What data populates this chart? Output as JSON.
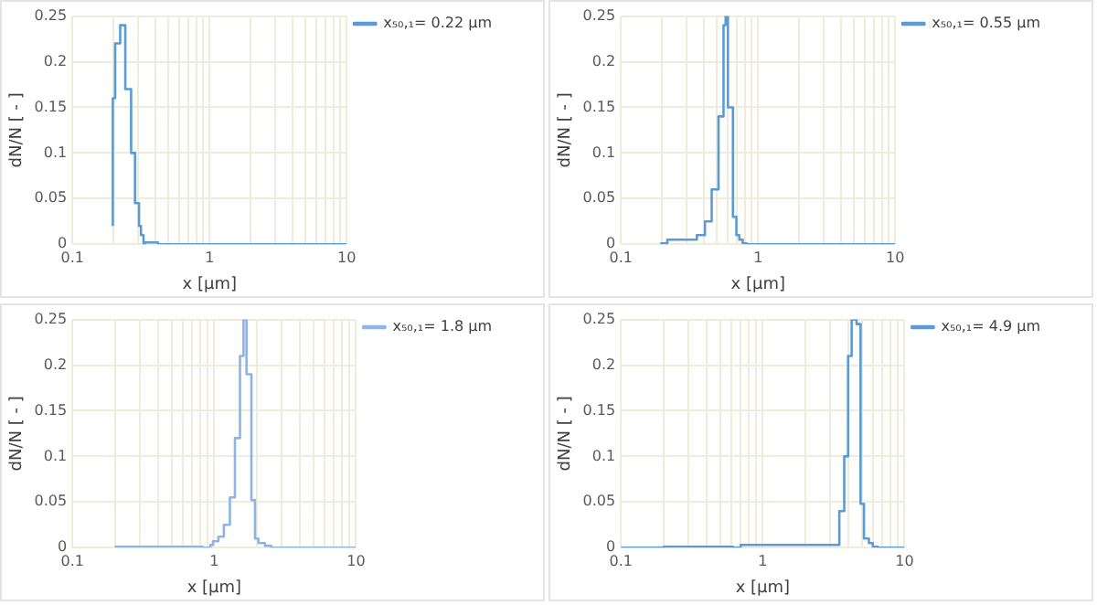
{
  "chart_data": [
    {
      "type": "step",
      "xlabel": "x [µm]",
      "ylabel": "dN/N [ - ]",
      "log": "x",
      "grid": true,
      "legend": "right",
      "marker": "none",
      "xlim": [
        0.1,
        10
      ],
      "xticks": [
        0.1,
        {
          "value": 0.2,
          "label": null
        },
        {
          "value": 0.3,
          "label": null
        },
        {
          "value": 0.4,
          "label": null
        },
        {
          "value": 0.5,
          "label": null
        },
        {
          "value": 0.6,
          "label": null
        },
        {
          "value": 0.7,
          "label": null
        },
        {
          "value": 0.8,
          "label": null
        },
        {
          "value": 0.9,
          "label": null
        },
        1,
        {
          "value": 2,
          "label": null
        },
        {
          "value": 3,
          "label": null
        },
        {
          "value": 4,
          "label": null
        },
        {
          "value": 5,
          "label": null
        },
        {
          "value": 6,
          "label": null
        },
        {
          "value": 7,
          "label": null
        },
        {
          "value": 8,
          "label": null
        },
        {
          "value": 9,
          "label": null
        },
        10
      ],
      "ylim": [
        0,
        0.25
      ],
      "yticks": [
        0,
        0.05,
        0.1,
        0.15,
        0.2,
        0.25
      ],
      "series": [
        {
          "name": "x₅₀,₁= 0.22 µm",
          "color": "#5b9bd5",
          "x": [
            0.197,
            0.205,
            0.223,
            0.243,
            0.268,
            0.286,
            0.306,
            0.316,
            0.33,
            0.338,
            0.42,
            0.51,
            10
          ],
          "values": [
            0.02,
            0.16,
            0.22,
            0.24,
            0.17,
            0.1,
            0.045,
            0.02,
            0.01,
            0,
            0.002,
            0,
            0
          ]
        }
      ]
    },
    {
      "type": "step",
      "xlabel": "x [µm]",
      "ylabel": "dN/N [ - ]",
      "log": "x",
      "grid": true,
      "legend": "right",
      "marker": "none",
      "xlim": [
        0.1,
        10
      ],
      "xticks": [
        0.1,
        {
          "value": 0.2,
          "label": null
        },
        {
          "value": 0.3,
          "label": null
        },
        {
          "value": 0.4,
          "label": null
        },
        {
          "value": 0.5,
          "label": null
        },
        {
          "value": 0.6,
          "label": null
        },
        {
          "value": 0.7,
          "label": null
        },
        {
          "value": 0.8,
          "label": null
        },
        {
          "value": 0.9,
          "label": null
        },
        1,
        {
          "value": 2,
          "label": null
        },
        {
          "value": 3,
          "label": null
        },
        {
          "value": 4,
          "label": null
        },
        {
          "value": 5,
          "label": null
        },
        {
          "value": 6,
          "label": null
        },
        {
          "value": 7,
          "label": null
        },
        {
          "value": 8,
          "label": null
        },
        {
          "value": 9,
          "label": null
        },
        10
      ],
      "ylim": [
        0,
        0.25
      ],
      "yticks": [
        0,
        0.05,
        0.1,
        0.15,
        0.2,
        0.25
      ],
      "series": [
        {
          "name": "x₅₀,₁= 0.55 µm",
          "color": "#5b9bd5",
          "x": [
            0.197,
            0.218,
            0.358,
            0.41,
            0.459,
            0.515,
            0.56,
            0.58,
            0.603,
            0.656,
            0.695,
            0.73,
            0.773,
            0.826,
            1.01,
            10
          ],
          "values": [
            0,
            0.001,
            0.005,
            0.01,
            0.025,
            0.06,
            0.14,
            0.24,
            0.25,
            0.15,
            0.03,
            0.01,
            0.005,
            0.001,
            0,
            0
          ]
        }
      ]
    },
    {
      "type": "step",
      "xlabel": "x [µm]",
      "ylabel": "dN/N [ - ]",
      "log": "x",
      "grid": true,
      "legend": "right",
      "marker": "none",
      "xlim": [
        0.1,
        10
      ],
      "xticks": [
        0.1,
        {
          "value": 0.2,
          "label": null
        },
        {
          "value": 0.3,
          "label": null
        },
        {
          "value": 0.4,
          "label": null
        },
        {
          "value": 0.5,
          "label": null
        },
        {
          "value": 0.6,
          "label": null
        },
        {
          "value": 0.7,
          "label": null
        },
        {
          "value": 0.8,
          "label": null
        },
        {
          "value": 0.9,
          "label": null
        },
        1,
        {
          "value": 2,
          "label": null
        },
        {
          "value": 3,
          "label": null
        },
        {
          "value": 4,
          "label": null
        },
        {
          "value": 5,
          "label": null
        },
        {
          "value": 6,
          "label": null
        },
        {
          "value": 7,
          "label": null
        },
        {
          "value": 8,
          "label": null
        },
        {
          "value": 9,
          "label": null
        },
        10
      ],
      "ylim": [
        0,
        0.25
      ],
      "yticks": [
        0,
        0.05,
        0.1,
        0.15,
        0.2,
        0.25
      ],
      "series": [
        {
          "name": "x₅₀,₁= 1.8 µm",
          "color": "#8eb4e3",
          "x": [
            0.202,
            0.83,
            0.94,
            0.98,
            1.07,
            1.17,
            1.29,
            1.4,
            1.52,
            1.61,
            1.69,
            1.83,
            1.94,
            2.05,
            2.28,
            2.53,
            3.02,
            10
          ],
          "values": [
            0,
            0.001,
            0,
            0.003,
            0.007,
            0.012,
            0.025,
            0.055,
            0.12,
            0.21,
            0.25,
            0.19,
            0.052,
            0.01,
            0.005,
            0.002,
            0,
            0
          ]
        }
      ]
    },
    {
      "type": "step",
      "xlabel": "x [µm]",
      "ylabel": "dN/N [ - ]",
      "log": "x",
      "grid": true,
      "legend": "right",
      "marker": "none",
      "xlim": [
        0.1,
        10
      ],
      "xticks": [
        0.1,
        {
          "value": 0.2,
          "label": null
        },
        {
          "value": 0.3,
          "label": null
        },
        {
          "value": 0.4,
          "label": null
        },
        {
          "value": 0.5,
          "label": null
        },
        {
          "value": 0.6,
          "label": null
        },
        {
          "value": 0.7,
          "label": null
        },
        {
          "value": 0.8,
          "label": null
        },
        {
          "value": 0.9,
          "label": null
        },
        1,
        {
          "value": 2,
          "label": null
        },
        {
          "value": 3,
          "label": null
        },
        {
          "value": 4,
          "label": null
        },
        {
          "value": 5,
          "label": null
        },
        {
          "value": 6,
          "label": null
        },
        {
          "value": 7,
          "label": null
        },
        {
          "value": 8,
          "label": null
        },
        {
          "value": 9,
          "label": null
        },
        10
      ],
      "ylim": [
        0,
        0.25
      ],
      "yticks": [
        0,
        0.05,
        0.1,
        0.15,
        0.2,
        0.25
      ],
      "series": [
        {
          "name": "x₅₀,₁= 4.9 µm",
          "color": "#5b9bd5",
          "x": [
            0.1,
            0.2,
            0.62,
            0.7,
            3.47,
            3.76,
            4.0,
            4.24,
            4.59,
            4.9,
            5.18,
            5.61,
            5.98,
            6.48,
            7.03,
            10
          ],
          "values": [
            0.001,
            0,
            0.001,
            0,
            0.003,
            0.04,
            0.1,
            0.21,
            0.25,
            0.245,
            0.048,
            0.01,
            0.005,
            0.001,
            0,
            0
          ]
        }
      ]
    }
  ]
}
